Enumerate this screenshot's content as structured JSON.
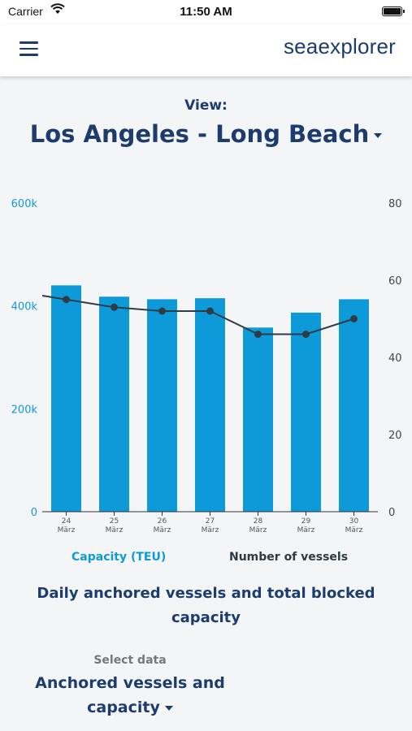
{
  "status_bar": {
    "carrier": "Carrier",
    "time": "11:50 AM"
  },
  "header": {
    "brand": "seaexplorer",
    "menu_icon": "hamburger-menu-icon"
  },
  "view": {
    "label": "View:",
    "selected": "Los Angeles - Long Beach"
  },
  "colors": {
    "bar": "#0e9ad8",
    "line": "#2f3b45",
    "title": "#1c3c6e"
  },
  "chart_data": {
    "type": "bar",
    "categories": [
      [
        "24",
        "März"
      ],
      [
        "25",
        "März"
      ],
      [
        "26",
        "März"
      ],
      [
        "27",
        "März"
      ],
      [
        "28",
        "März"
      ],
      [
        "29",
        "März"
      ],
      [
        "30",
        "März"
      ]
    ],
    "series": [
      {
        "name": "Capacity (TEU)",
        "type": "bar",
        "axis": "left",
        "values": [
          440000,
          418000,
          413000,
          415000,
          358000,
          387000,
          413000
        ]
      },
      {
        "name": "Number of vessels",
        "type": "line",
        "axis": "right",
        "values": [
          55,
          53,
          52,
          52,
          46,
          46,
          50
        ],
        "line_start_value": 56
      }
    ],
    "y_left": {
      "min": 0,
      "max": 600000,
      "ticks": [
        "0",
        "200k",
        "400k",
        "600k"
      ],
      "tick_values": [
        0,
        200000,
        400000,
        600000
      ]
    },
    "y_right": {
      "min": 0,
      "max": 80,
      "ticks": [
        "0",
        "20",
        "40",
        "60",
        "80"
      ],
      "tick_values": [
        0,
        20,
        40,
        60,
        80
      ]
    },
    "grid": false,
    "legend_placement": "bottom"
  },
  "legend": {
    "capacity": "Capacity (TEU)",
    "vessels": "Number of vessels"
  },
  "chart_title": "Daily anchored vessels and total blocked capacity",
  "select_data": {
    "label": "Select data",
    "selected": "Anchored vessels and capacity"
  }
}
